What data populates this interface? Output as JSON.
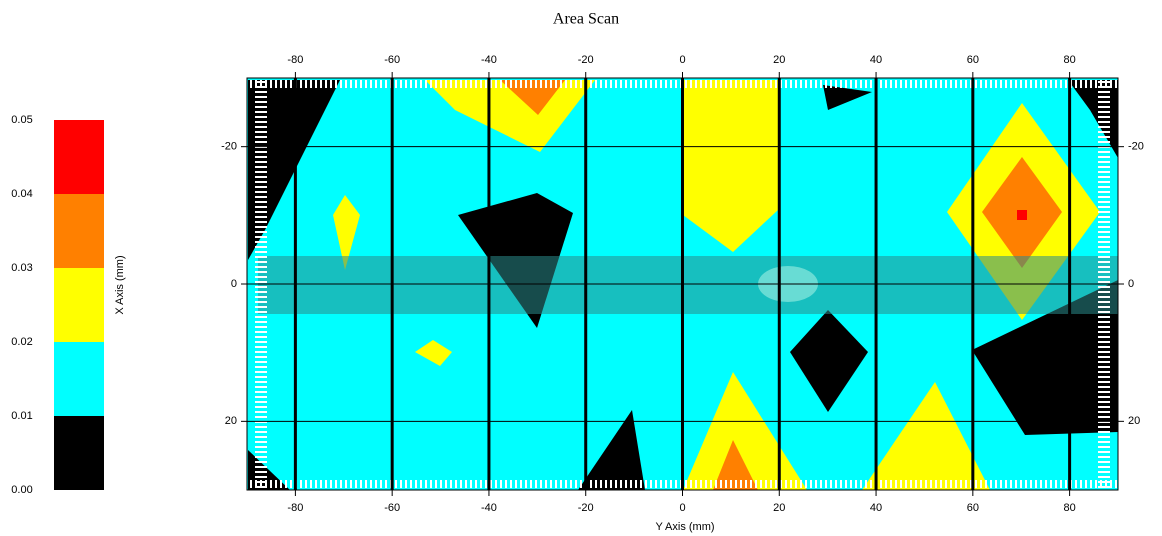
{
  "chart_data": {
    "type": "contour",
    "title": "Area Scan",
    "x_label": "Y Axis (mm)",
    "colorbar_label": "X Axis (mm)",
    "xlim": [
      -90,
      90
    ],
    "xticks": [
      -80,
      -60,
      -40,
      -20,
      0,
      20,
      40,
      60,
      80
    ],
    "ylim": [
      -30,
      30
    ],
    "yticks": [
      -20,
      0,
      20
    ],
    "grid": true,
    "levels": [
      {
        "value": 0,
        "label": "0.00"
      },
      {
        "value": 0.01,
        "label": "0.01"
      },
      {
        "value": 0.02,
        "label": "0.02"
      },
      {
        "value": 0.03,
        "label": "0.03"
      },
      {
        "value": 0.04,
        "label": "0.04"
      },
      {
        "value": 0.05,
        "label": "0.05"
      }
    ],
    "colors": [
      "#000000",
      "#00ffff",
      "#ffff00",
      "#ff8000",
      "#ff0000"
    ]
  }
}
